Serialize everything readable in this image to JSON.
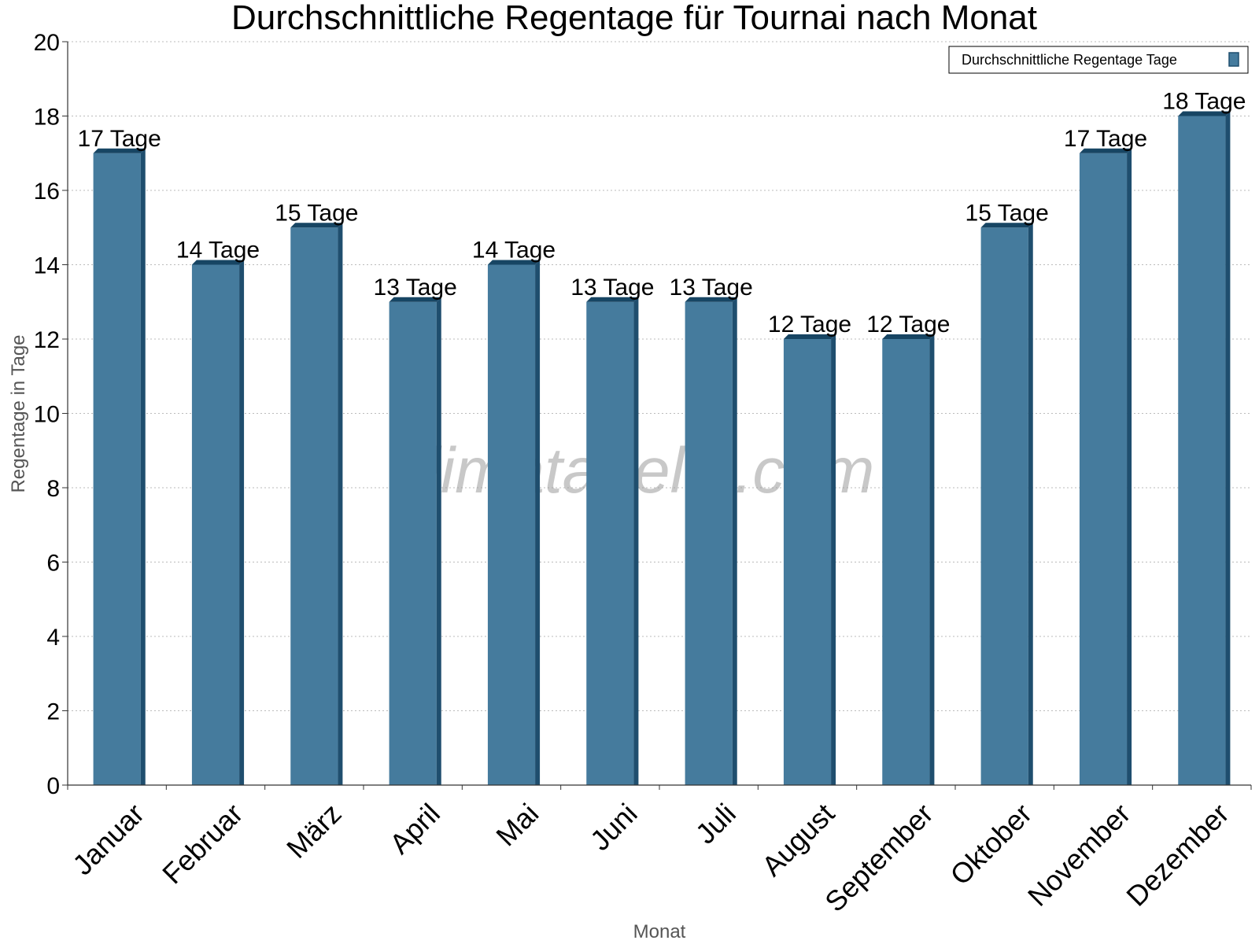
{
  "chart_data": {
    "type": "bar",
    "title": "Durchschnittliche Regentage für Tournai nach Monat",
    "xlabel": "Monat",
    "ylabel": "Regentage in Tage",
    "ylim": [
      0,
      20
    ],
    "yticks": [
      0,
      2,
      4,
      6,
      8,
      10,
      12,
      14,
      16,
      18,
      20
    ],
    "grid": true,
    "legend_position": "top-right",
    "categories": [
      "Januar",
      "Februar",
      "März",
      "April",
      "Mai",
      "Juni",
      "Juli",
      "August",
      "September",
      "Oktober",
      "November",
      "Dezember"
    ],
    "series": [
      {
        "name": "Durchschnittliche Regentage Tage",
        "color": "#457b9d",
        "values": [
          17,
          14,
          15,
          13,
          14,
          13,
          13,
          12,
          12,
          15,
          17,
          18
        ],
        "labels": [
          "17 Tage",
          "14 Tage",
          "15 Tage",
          "13 Tage",
          "14 Tage",
          "13 Tage",
          "13 Tage",
          "12 Tage",
          "12 Tage",
          "15 Tage",
          "17 Tage",
          "18 Tage"
        ]
      }
    ]
  },
  "watermark": "klimatabelle.com"
}
